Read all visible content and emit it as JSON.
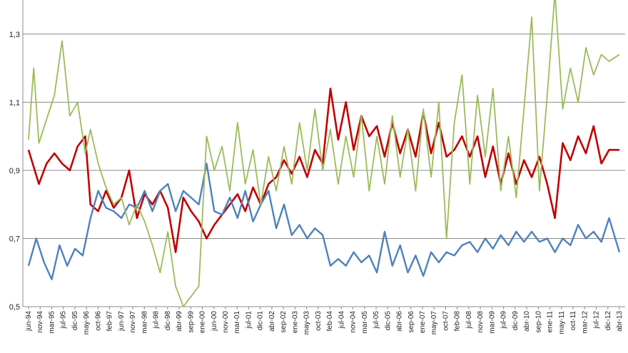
{
  "chart_data": {
    "type": "line",
    "title": "",
    "xlabel": "",
    "ylabel": "",
    "ylim": [
      0.5,
      1.4
    ],
    "yticks": [
      0.5,
      0.7,
      0.9,
      1.1,
      1.3
    ],
    "ytick_labels": [
      "0,5",
      "0,7",
      "0,9",
      "1,1",
      "1,3"
    ],
    "grid": true,
    "legend": "none",
    "x_start": "1994-06",
    "x_end": "2013-07",
    "x_tick_labels": [
      "jun-94",
      "nov-94",
      "mar-95",
      "jul-95",
      "dic-95",
      "may-96",
      "oct-96",
      "feb-97",
      "jun-97",
      "nov-97",
      "mar-98",
      "jul-98",
      "dic-98",
      "abr-99",
      "sep-99",
      "ene-00",
      "jun-00",
      "nov-00",
      "mar-01",
      "jul-01",
      "dic-01",
      "abr-02",
      "sep-02",
      "ene-03",
      "may-03",
      "oct-03",
      "feb-04",
      "jul-04",
      "nov-04",
      "mar-05",
      "jul-05",
      "dic-05",
      "abr-06",
      "sep-06",
      "ene-07",
      "may-07",
      "oct-07",
      "feb-08",
      "jul-08",
      "nov-08",
      "mar-09",
      "jul-09",
      "dic-09",
      "abr-10",
      "sep-10",
      "ene-11",
      "may-11",
      "oct-11",
      "mar-12",
      "jul-12",
      "dic-12",
      "abr-13"
    ],
    "series": [
      {
        "color": "#c00000",
        "points": [
          [
            "1994-06",
            0.96
          ],
          [
            "1994-10",
            0.86
          ],
          [
            "1995-01",
            0.92
          ],
          [
            "1995-04",
            0.95
          ],
          [
            "1995-07",
            0.92
          ],
          [
            "1995-10",
            0.9
          ],
          [
            "1996-01",
            0.97
          ],
          [
            "1996-04",
            1.0
          ],
          [
            "1996-06",
            0.8
          ],
          [
            "1996-09",
            0.78
          ],
          [
            "1996-12",
            0.84
          ],
          [
            "1997-03",
            0.79
          ],
          [
            "1997-06",
            0.82
          ],
          [
            "1997-09",
            0.9
          ],
          [
            "1997-12",
            0.76
          ],
          [
            "1998-03",
            0.83
          ],
          [
            "1998-06",
            0.8
          ],
          [
            "1998-09",
            0.84
          ],
          [
            "1998-12",
            0.79
          ],
          [
            "1999-03",
            0.66
          ],
          [
            "1999-06",
            0.82
          ],
          [
            "1999-09",
            0.78
          ],
          [
            "1999-12",
            0.75
          ],
          [
            "2000-03",
            0.7
          ],
          [
            "2000-06",
            0.74
          ],
          [
            "2000-09",
            0.77
          ],
          [
            "2000-12",
            0.8
          ],
          [
            "2001-03",
            0.83
          ],
          [
            "2001-06",
            0.78
          ],
          [
            "2001-09",
            0.85
          ],
          [
            "2001-12",
            0.8
          ],
          [
            "2002-03",
            0.86
          ],
          [
            "2002-06",
            0.88
          ],
          [
            "2002-09",
            0.93
          ],
          [
            "2002-12",
            0.89
          ],
          [
            "2003-03",
            0.94
          ],
          [
            "2003-06",
            0.88
          ],
          [
            "2003-09",
            0.96
          ],
          [
            "2003-12",
            0.92
          ],
          [
            "2004-03",
            1.14
          ],
          [
            "2004-06",
            0.99
          ],
          [
            "2004-09",
            1.1
          ],
          [
            "2004-12",
            0.96
          ],
          [
            "2005-03",
            1.06
          ],
          [
            "2005-06",
            1.0
          ],
          [
            "2005-09",
            1.03
          ],
          [
            "2005-12",
            0.94
          ],
          [
            "2006-03",
            1.04
          ],
          [
            "2006-06",
            0.95
          ],
          [
            "2006-09",
            1.02
          ],
          [
            "2006-12",
            0.94
          ],
          [
            "2007-03",
            1.07
          ],
          [
            "2007-06",
            0.95
          ],
          [
            "2007-09",
            1.04
          ],
          [
            "2007-12",
            0.94
          ],
          [
            "2008-03",
            0.96
          ],
          [
            "2008-06",
            1.0
          ],
          [
            "2008-09",
            0.94
          ],
          [
            "2008-12",
            1.0
          ],
          [
            "2009-03",
            0.88
          ],
          [
            "2009-06",
            0.97
          ],
          [
            "2009-09",
            0.86
          ],
          [
            "2009-12",
            0.95
          ],
          [
            "2010-03",
            0.86
          ],
          [
            "2010-06",
            0.93
          ],
          [
            "2010-09",
            0.88
          ],
          [
            "2010-12",
            0.94
          ],
          [
            "2011-03",
            0.86
          ],
          [
            "2011-06",
            0.76
          ],
          [
            "2011-09",
            0.98
          ],
          [
            "2011-12",
            0.93
          ],
          [
            "2012-03",
            1.0
          ],
          [
            "2012-06",
            0.95
          ],
          [
            "2012-09",
            1.03
          ],
          [
            "2012-12",
            0.92
          ],
          [
            "2013-03",
            0.96
          ],
          [
            "2013-07",
            0.96
          ]
        ]
      },
      {
        "color": "#4f81bd",
        "points": [
          [
            "1994-06",
            0.62
          ],
          [
            "1994-09",
            0.7
          ],
          [
            "1994-12",
            0.63
          ],
          [
            "1995-03",
            0.58
          ],
          [
            "1995-06",
            0.68
          ],
          [
            "1995-09",
            0.62
          ],
          [
            "1995-12",
            0.67
          ],
          [
            "1996-03",
            0.65
          ],
          [
            "1996-06",
            0.76
          ],
          [
            "1996-09",
            0.84
          ],
          [
            "1996-12",
            0.79
          ],
          [
            "1997-03",
            0.78
          ],
          [
            "1997-06",
            0.76
          ],
          [
            "1997-09",
            0.8
          ],
          [
            "1997-12",
            0.79
          ],
          [
            "1998-03",
            0.84
          ],
          [
            "1998-06",
            0.78
          ],
          [
            "1998-09",
            0.84
          ],
          [
            "1998-12",
            0.86
          ],
          [
            "1999-03",
            0.78
          ],
          [
            "1999-06",
            0.84
          ],
          [
            "1999-09",
            0.82
          ],
          [
            "1999-12",
            0.8
          ],
          [
            "2000-03",
            0.92
          ],
          [
            "2000-06",
            0.78
          ],
          [
            "2000-09",
            0.77
          ],
          [
            "2000-12",
            0.82
          ],
          [
            "2001-03",
            0.76
          ],
          [
            "2001-06",
            0.84
          ],
          [
            "2001-09",
            0.75
          ],
          [
            "2001-12",
            0.8
          ],
          [
            "2002-03",
            0.84
          ],
          [
            "2002-06",
            0.73
          ],
          [
            "2002-09",
            0.8
          ],
          [
            "2002-12",
            0.71
          ],
          [
            "2003-03",
            0.74
          ],
          [
            "2003-06",
            0.7
          ],
          [
            "2003-09",
            0.73
          ],
          [
            "2003-12",
            0.71
          ],
          [
            "2004-03",
            0.62
          ],
          [
            "2004-06",
            0.64
          ],
          [
            "2004-09",
            0.62
          ],
          [
            "2004-12",
            0.66
          ],
          [
            "2005-03",
            0.63
          ],
          [
            "2005-06",
            0.65
          ],
          [
            "2005-09",
            0.6
          ],
          [
            "2005-12",
            0.72
          ],
          [
            "2006-03",
            0.62
          ],
          [
            "2006-06",
            0.68
          ],
          [
            "2006-09",
            0.6
          ],
          [
            "2006-12",
            0.65
          ],
          [
            "2007-03",
            0.59
          ],
          [
            "2007-06",
            0.66
          ],
          [
            "2007-09",
            0.63
          ],
          [
            "2007-12",
            0.66
          ],
          [
            "2008-03",
            0.65
          ],
          [
            "2008-06",
            0.68
          ],
          [
            "2008-09",
            0.69
          ],
          [
            "2008-12",
            0.66
          ],
          [
            "2009-03",
            0.7
          ],
          [
            "2009-06",
            0.67
          ],
          [
            "2009-09",
            0.71
          ],
          [
            "2009-12",
            0.68
          ],
          [
            "2010-03",
            0.72
          ],
          [
            "2010-06",
            0.69
          ],
          [
            "2010-09",
            0.72
          ],
          [
            "2010-12",
            0.69
          ],
          [
            "2011-03",
            0.7
          ],
          [
            "2011-06",
            0.66
          ],
          [
            "2011-09",
            0.7
          ],
          [
            "2011-12",
            0.68
          ],
          [
            "2012-03",
            0.74
          ],
          [
            "2012-06",
            0.7
          ],
          [
            "2012-09",
            0.72
          ],
          [
            "2012-12",
            0.69
          ],
          [
            "2013-03",
            0.76
          ],
          [
            "2013-07",
            0.66
          ]
        ]
      },
      {
        "color": "#9bbb59",
        "points": [
          [
            "1994-06",
            0.99
          ],
          [
            "1994-08",
            1.2
          ],
          [
            "1994-10",
            0.98
          ],
          [
            "1995-01",
            1.05
          ],
          [
            "1995-04",
            1.12
          ],
          [
            "1995-07",
            1.28
          ],
          [
            "1995-10",
            1.06
          ],
          [
            "1996-01",
            1.1
          ],
          [
            "1996-04",
            0.95
          ],
          [
            "1996-06",
            1.02
          ],
          [
            "1996-09",
            0.92
          ],
          [
            "1996-12",
            0.85
          ],
          [
            "1997-03",
            0.8
          ],
          [
            "1997-06",
            0.82
          ],
          [
            "1997-09",
            0.74
          ],
          [
            "1997-12",
            0.8
          ],
          [
            "1998-03",
            0.75
          ],
          [
            "1998-06",
            0.68
          ],
          [
            "1998-09",
            0.6
          ],
          [
            "1998-12",
            0.72
          ],
          [
            "1999-03",
            0.56
          ],
          [
            "1999-06",
            0.5
          ],
          [
            "1999-09",
            0.53
          ],
          [
            "1999-12",
            0.56
          ],
          [
            "2000-03",
            1.0
          ],
          [
            "2000-06",
            0.9
          ],
          [
            "2000-09",
            0.97
          ],
          [
            "2000-12",
            0.84
          ],
          [
            "2001-03",
            1.04
          ],
          [
            "2001-06",
            0.86
          ],
          [
            "2001-09",
            0.96
          ],
          [
            "2001-12",
            0.8
          ],
          [
            "2002-03",
            0.94
          ],
          [
            "2002-06",
            0.84
          ],
          [
            "2002-09",
            0.97
          ],
          [
            "2002-12",
            0.86
          ],
          [
            "2003-03",
            1.04
          ],
          [
            "2003-06",
            0.9
          ],
          [
            "2003-09",
            1.08
          ],
          [
            "2003-12",
            0.9
          ],
          [
            "2004-03",
            1.02
          ],
          [
            "2004-06",
            0.86
          ],
          [
            "2004-09",
            1.0
          ],
          [
            "2004-12",
            0.88
          ],
          [
            "2005-03",
            1.06
          ],
          [
            "2005-06",
            0.84
          ],
          [
            "2005-09",
            1.0
          ],
          [
            "2005-12",
            0.86
          ],
          [
            "2006-03",
            1.06
          ],
          [
            "2006-06",
            0.88
          ],
          [
            "2006-09",
            1.02
          ],
          [
            "2006-12",
            0.84
          ],
          [
            "2007-03",
            1.08
          ],
          [
            "2007-06",
            0.88
          ],
          [
            "2007-09",
            1.1
          ],
          [
            "2007-12",
            0.7
          ],
          [
            "2008-03",
            1.04
          ],
          [
            "2008-06",
            1.18
          ],
          [
            "2008-09",
            0.86
          ],
          [
            "2008-12",
            1.12
          ],
          [
            "2009-03",
            0.94
          ],
          [
            "2009-06",
            1.14
          ],
          [
            "2009-09",
            0.84
          ],
          [
            "2009-12",
            1.0
          ],
          [
            "2010-03",
            0.82
          ],
          [
            "2010-06",
            1.08
          ],
          [
            "2010-09",
            1.35
          ],
          [
            "2010-12",
            0.84
          ],
          [
            "2011-03",
            1.12
          ],
          [
            "2011-06",
            1.42
          ],
          [
            "2011-09",
            1.08
          ],
          [
            "2011-12",
            1.2
          ],
          [
            "2012-03",
            1.1
          ],
          [
            "2012-06",
            1.26
          ],
          [
            "2012-09",
            1.18
          ],
          [
            "2012-12",
            1.24
          ],
          [
            "2013-03",
            1.22
          ],
          [
            "2013-07",
            1.24
          ]
        ]
      }
    ]
  }
}
